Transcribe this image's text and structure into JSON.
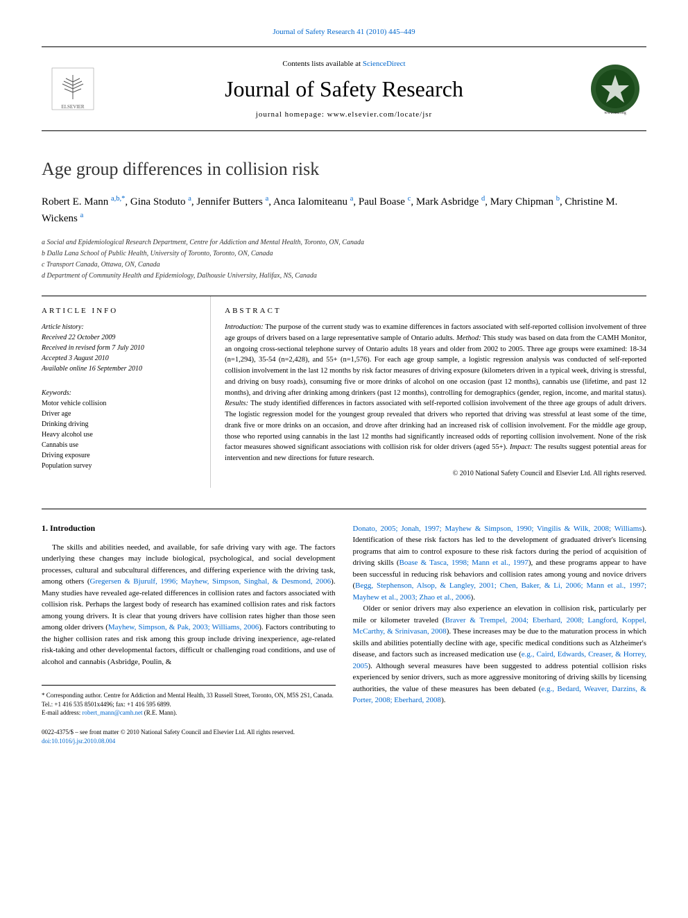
{
  "header": {
    "citation": "Journal of Safety Research 41 (2010) 445–449",
    "sciencedirect_text": "Contents lists available at ",
    "sciencedirect_link": "ScienceDirect",
    "journal_name": "Journal of Safety Research",
    "homepage_text": "journal homepage: www.elsevier.com/locate/jsr",
    "publisher": "ELSEVIER"
  },
  "article": {
    "title": "Age group differences in collision risk",
    "authors_html": "Robert E. Mann <span class='sup'>a,b,</span><span class='sup'>*</span>, Gina Stoduto <span class='sup'>a</span>, Jennifer Butters <span class='sup'>a</span>, Anca Ialomiteanu <span class='sup'>a</span>, Paul Boase <span class='sup'>c</span>, Mark Asbridge <span class='sup'>d</span>, Mary Chipman <span class='sup'>b</span>, Christine M. Wickens <span class='sup'>a</span>"
  },
  "affiliations": [
    "a Social and Epidemiological Research Department, Centre for Addiction and Mental Health, Toronto, ON, Canada",
    "b Dalla Lana School of Public Health, University of Toronto, Toronto, ON, Canada",
    "c Transport Canada, Ottawa, ON, Canada",
    "d Department of Community Health and Epidemiology, Dalhousie University, Halifax, NS, Canada"
  ],
  "article_info": {
    "header": "ARTICLE INFO",
    "history_label": "Article history:",
    "history": [
      "Received 22 October 2009",
      "Received in revised form 7 July 2010",
      "Accepted 3 August 2010",
      "Available online 16 September 2010"
    ],
    "keywords_label": "Keywords:",
    "keywords": [
      "Motor vehicle collision",
      "Driver age",
      "Drinking driving",
      "Heavy alcohol use",
      "Cannabis use",
      "Driving exposure",
      "Population survey"
    ]
  },
  "abstract": {
    "header": "ABSTRACT",
    "text": "Introduction: The purpose of the current study was to examine differences in factors associated with self-reported collision involvement of three age groups of drivers based on a large representative sample of Ontario adults. Method: This study was based on data from the CAMH Monitor, an ongoing cross-sectional telephone survey of Ontario adults 18 years and older from 2002 to 2005. Three age groups were examined: 18-34 (n=1,294), 35-54 (n=2,428), and 55+ (n=1,576). For each age group sample, a logistic regression analysis was conducted of self-reported collision involvement in the last 12 months by risk factor measures of driving exposure (kilometers driven in a typical week, driving is stressful, and driving on busy roads), consuming five or more drinks of alcohol on one occasion (past 12 months), cannabis use (lifetime, and past 12 months), and driving after drinking among drinkers (past 12 months), controlling for demographics (gender, region, income, and marital status). Results: The study identified differences in factors associated with self-reported collision involvement of the three age groups of adult drivers. The logistic regression model for the youngest group revealed that drivers who reported that driving was stressful at least some of the time, drank five or more drinks on an occasion, and drove after drinking had an increased risk of collision involvement. For the middle age group, those who reported using cannabis in the last 12 months had significantly increased odds of reporting collision involvement. None of the risk factor measures showed significant associations with collision risk for older drivers (aged 55+). Impact: The results suggest potential areas for intervention and new directions for future research.",
    "copyright": "© 2010 National Safety Council and Elsevier Ltd. All rights reserved."
  },
  "body": {
    "section_title": "1. Introduction",
    "col1_para": "The skills and abilities needed, and available, for safe driving vary with age. The factors underlying these changes may include biological, psychological, and social development processes, cultural and subcultural differences, and differing experience with the driving task, among others (Gregersen & Bjurulf, 1996; Mayhew, Simpson, Singhal, & Desmond, 2006). Many studies have revealed age-related differences in collision rates and factors associated with collision risk. Perhaps the largest body of research has examined collision rates and risk factors among young drivers. It is clear that young drivers have collision rates higher than those seen among older drivers (Mayhew, Simpson, & Pak, 2003; Williams, 2006). Factors contributing to the higher collision rates and risk among this group include driving inexperience, age-related risk-taking and other developmental factors, difficult or challenging road conditions, and use of alcohol and cannabis (Asbridge, Poulin, &",
    "col2_para1": "Donato, 2005; Jonah, 1997; Mayhew & Simpson, 1990; Vingilis & Wilk, 2008; Williams). Identification of these risk factors has led to the development of graduated driver's licensing programs that aim to control exposure to these risk factors during the period of acquisition of driving skills (Boase & Tasca, 1998; Mann et al., 1997), and these programs appear to have been successful in reducing risk behaviors and collision rates among young and novice drivers (Begg, Stephenson, Alsop, & Langley, 2001; Chen, Baker, & Li, 2006; Mann et al., 1997; Mayhew et al., 2003; Zhao et al., 2006).",
    "col2_para2": "Older or senior drivers may also experience an elevation in collision risk, particularly per mile or kilometer traveled (Braver & Trempel, 2004; Eberhard, 2008; Langford, Koppel, McCarthy, & Srinivasan, 2008). These increases may be due to the maturation process in which skills and abilities potentially decline with age, specific medical conditions such as Alzheimer's disease, and factors such as increased medication use (e.g., Caird, Edwards, Creaser, & Horrey, 2005). Although several measures have been suggested to address potential collision risks experienced by senior drivers, such as more aggressive monitoring of driving skills by licensing authorities, the value of these measures has been debated (e.g., Bedard, Weaver, Darzins, & Porter, 2008; Eberhard, 2008)."
  },
  "footer": {
    "corresponding": "* Corresponding author. Centre for Addiction and Mental Health, 33 Russell Street, Toronto, ON, M5S 2S1, Canada. Tel.: +1 416 535 8501x4496; fax: +1 416 595 6899.",
    "email_label": "E-mail address: ",
    "email": "robert_mann@camh.net",
    "email_suffix": " (R.E. Mann).",
    "issn": "0022-4375/$ – see front matter © 2010 National Safety Council and Elsevier Ltd. All rights reserved.",
    "doi": "doi:10.1016/j.jsr.2010.08.004"
  },
  "colors": {
    "link_color": "#0066cc",
    "text_color": "#000000",
    "background": "#ffffff"
  }
}
